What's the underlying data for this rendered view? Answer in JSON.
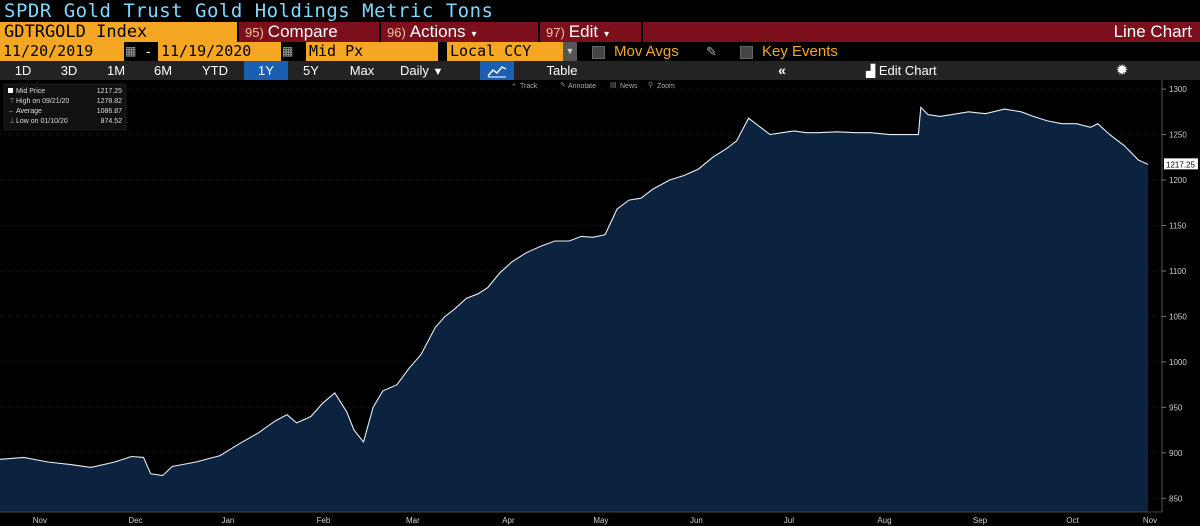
{
  "header": {
    "title": "SPDR Gold Trust Gold Holdings Metric Tons",
    "ticker": "GDTRGOLD Index",
    "compare": {
      "num": "95)",
      "label": "Compare"
    },
    "actions": {
      "num": "96)",
      "label": "Actions"
    },
    "edit": {
      "num": "97)",
      "label": "Edit"
    },
    "chart_type": "Line Chart"
  },
  "controls": {
    "start_date": "11/20/2019",
    "dash": "-",
    "end_date": "11/19/2020",
    "field": "Mid Px",
    "currency": "Local CCY",
    "mov_avgs": "Mov Avgs",
    "key_events": "Key Events"
  },
  "toolbar": {
    "ranges": [
      "1D",
      "3D",
      "1M",
      "6M",
      "YTD",
      "1Y",
      "5Y",
      "Max"
    ],
    "selected_range": "1Y",
    "frequency": "Daily",
    "table": "Table",
    "edit_chart": "Edit Chart"
  },
  "chart_tools": [
    "Track",
    "Annotate",
    "News",
    "Zoom"
  ],
  "legend": {
    "mid_label": "Mid Price",
    "mid_value": "1217.25",
    "high_label": "High on 09/21/20",
    "high_value": "1278.82",
    "avg_label": "Average",
    "avg_value": "1086.87",
    "low_label": "Low on 01/10/20",
    "low_value": "874.52"
  },
  "colors": {
    "line": "#e8eef5",
    "fill": "#0c2340",
    "accent": "#f5a623",
    "header_red": "#7b0f1c",
    "title": "#7fd8ff"
  },
  "chart_data": {
    "type": "area",
    "title": "SPDR Gold Trust Gold Holdings Metric Tons",
    "ylim": [
      835,
      1310
    ],
    "yticks": [
      850,
      900,
      950,
      1000,
      1050,
      1100,
      1150,
      1200,
      1250,
      1300
    ],
    "last_value_label": "1217.25",
    "x_labels": [
      "Nov",
      "Dec",
      "Jan",
      "Feb",
      "Mar",
      "Apr",
      "May",
      "Jun",
      "Jul",
      "Aug",
      "Sep",
      "Oct",
      "Nov"
    ],
    "x_label_days": [
      11,
      42,
      72,
      103,
      132,
      163,
      193,
      224,
      254,
      285,
      316,
      346,
      377
    ],
    "x_start": "2019-11-20",
    "x_end": "2020-11-19",
    "series": [
      {
        "name": "Mid Price",
        "points": [
          [
            0,
            893
          ],
          [
            10,
            895
          ],
          [
            20,
            890
          ],
          [
            30,
            887
          ],
          [
            38,
            884
          ],
          [
            48,
            890
          ],
          [
            55,
            896
          ],
          [
            60,
            895
          ],
          [
            63,
            877
          ],
          [
            68,
            875
          ],
          [
            72,
            885
          ],
          [
            82,
            890
          ],
          [
            92,
            897
          ],
          [
            100,
            910
          ],
          [
            108,
            922
          ],
          [
            115,
            935
          ],
          [
            120,
            942
          ],
          [
            124,
            933
          ],
          [
            130,
            940
          ],
          [
            135,
            955
          ],
          [
            140,
            966
          ],
          [
            145,
            945
          ],
          [
            148,
            925
          ],
          [
            152,
            912
          ],
          [
            156,
            950
          ],
          [
            160,
            968
          ],
          [
            166,
            975
          ],
          [
            171,
            993
          ],
          [
            176,
            1008
          ],
          [
            182,
            1038
          ],
          [
            186,
            1050
          ],
          [
            190,
            1058
          ],
          [
            195,
            1070
          ],
          [
            200,
            1075
          ],
          [
            204,
            1082
          ],
          [
            209,
            1098
          ],
          [
            214,
            1110
          ],
          [
            220,
            1120
          ],
          [
            226,
            1127
          ],
          [
            232,
            1133
          ],
          [
            238,
            1133
          ],
          [
            243,
            1138
          ],
          [
            248,
            1137
          ],
          [
            253,
            1140
          ],
          [
            258,
            1168
          ],
          [
            263,
            1178
          ],
          [
            268,
            1180
          ],
          [
            273,
            1190
          ],
          [
            280,
            1200
          ],
          [
            286,
            1205
          ],
          [
            292,
            1212
          ],
          [
            298,
            1225
          ],
          [
            304,
            1235
          ],
          [
            308,
            1243
          ],
          [
            313,
            1268
          ],
          [
            318,
            1258
          ],
          [
            322,
            1250
          ],
          [
            327,
            1252
          ],
          [
            332,
            1254
          ],
          [
            337,
            1252
          ],
          [
            342,
            1252
          ],
          [
            350,
            1253
          ],
          [
            358,
            1252
          ],
          [
            364,
            1252
          ],
          [
            372,
            1250
          ],
          [
            378,
            1250
          ],
          [
            384,
            1250
          ],
          [
            385,
            1280
          ],
          [
            388,
            1272
          ],
          [
            393,
            1270
          ],
          [
            398,
            1272
          ],
          [
            405,
            1275
          ],
          [
            412,
            1273
          ],
          [
            420,
            1278
          ],
          [
            427,
            1275
          ],
          [
            432,
            1270
          ],
          [
            438,
            1265
          ],
          [
            444,
            1262
          ],
          [
            450,
            1262
          ],
          [
            456,
            1258
          ],
          [
            459,
            1262
          ],
          [
            464,
            1250
          ],
          [
            470,
            1238
          ],
          [
            476,
            1222
          ],
          [
            480,
            1217.25
          ]
        ]
      }
    ]
  }
}
